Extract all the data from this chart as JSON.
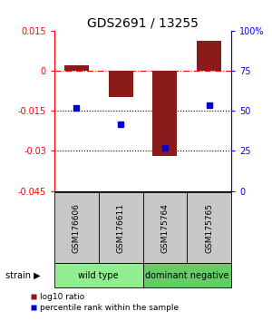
{
  "title": "GDS2691 / 13255",
  "samples": [
    "GSM176606",
    "GSM176611",
    "GSM175764",
    "GSM175765"
  ],
  "bar_values": [
    0.002,
    -0.01,
    -0.032,
    0.011
  ],
  "point_values": [
    -0.014,
    -0.02,
    -0.029,
    -0.013
  ],
  "bar_color": "#8B1A1A",
  "point_color": "#0000CD",
  "ylim_left": [
    -0.045,
    0.015
  ],
  "ylim_right": [
    0,
    100
  ],
  "yticks_left": [
    0.015,
    0,
    -0.015,
    -0.03,
    -0.045
  ],
  "ytick_labels_left": [
    "0.015",
    "0",
    "-0.015",
    "-0.03",
    "-0.045"
  ],
  "yticks_right": [
    100,
    75,
    50,
    25,
    0
  ],
  "ytick_labels_right": [
    "100%",
    "75",
    "50",
    "25",
    "0"
  ],
  "groups": [
    {
      "label": "wild type",
      "samples": [
        0,
        1
      ],
      "color": "#90EE90"
    },
    {
      "label": "dominant negative",
      "samples": [
        2,
        3
      ],
      "color": "#66CD66"
    }
  ],
  "hline_dash": 0.0,
  "hline_dot1": -0.015,
  "hline_dot2": -0.03,
  "legend_red_label": "log10 ratio",
  "legend_blue_label": "percentile rank within the sample",
  "strain_label": "strain",
  "bar_width": 0.55,
  "sample_box_color": "#C8C8C8",
  "bg_color": "#FFFFFF"
}
